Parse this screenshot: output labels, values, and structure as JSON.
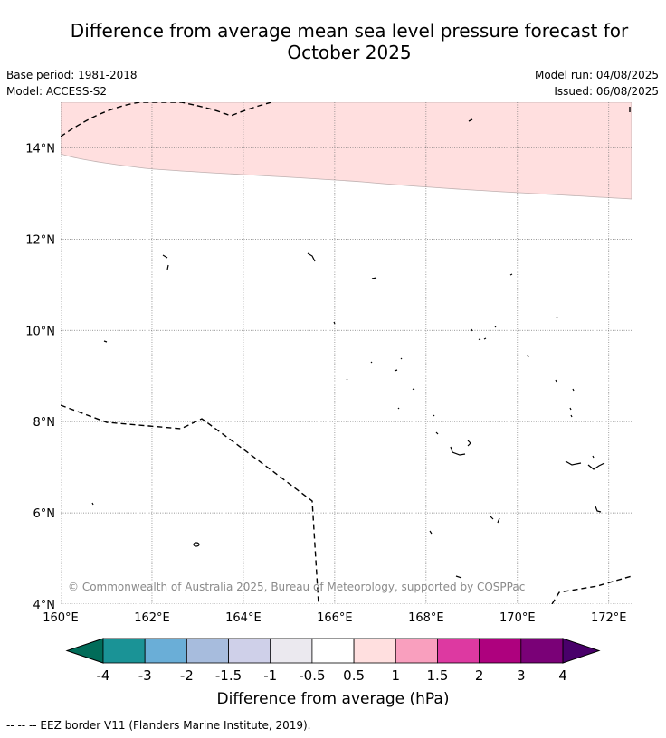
{
  "title_line1": "Difference from average mean sea level pressure forecast for",
  "title_line2": "October 2025",
  "base_period": "Base period: 1981-2018",
  "model": "Model: ACCESS-S2",
  "model_run": "Model run: 04/08/2025",
  "issued": "Issued: 06/08/2025",
  "copyright": "© Commonwealth of Australia 2025, Bureau of Meteorology, supported by COSPPac",
  "map": {
    "lon_labels": [
      "160°E",
      "162°E",
      "164°E",
      "166°E",
      "168°E",
      "170°E",
      "172°E"
    ],
    "lat_labels": [
      "14°N",
      "12°N",
      "10°N",
      "8°N",
      "6°N",
      "4°N"
    ],
    "lon_range": [
      160,
      172.5
    ],
    "lat_range": [
      4,
      15
    ],
    "shaded_category": "0.5 to 1",
    "shaded_color": "#ffdfdf"
  },
  "colorbar": {
    "label": "Difference from average (hPa)",
    "ticks": [
      "-4",
      "-3",
      "-2",
      "-1.5",
      "-1",
      "-0.5",
      "0.5",
      "1",
      "1.5",
      "2",
      "3",
      "4"
    ],
    "colors": [
      "#1a9396",
      "#6aaed7",
      "#a7bcdd",
      "#cfd0e9",
      "#ebe9ef",
      "#ffffff",
      "#ffdfdf",
      "#f99fbe",
      "#dd39a1",
      "#ae017e",
      "#7a0177"
    ],
    "under_color": "#016c59",
    "over_color": "#49006a"
  },
  "legend_note": "--  --  -- EEZ border V11 (Flanders Marine Institute, 2019)."
}
